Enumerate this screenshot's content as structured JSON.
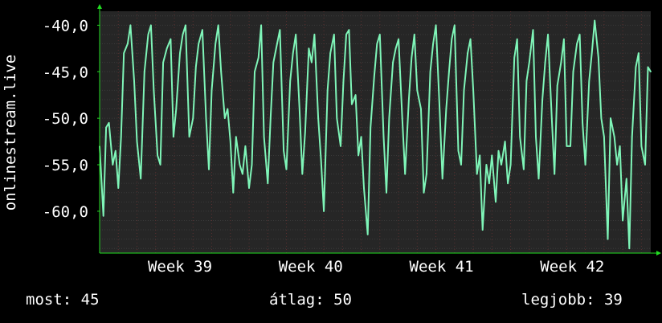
{
  "chart_data": {
    "type": "line",
    "title": "",
    "ylabel": "onlinestream.live",
    "xlabel": "",
    "ylim": [
      -64.5,
      -38.5
    ],
    "yticks": [
      {
        "value": -40,
        "label": "-40,0"
      },
      {
        "value": -45,
        "label": "-45,0"
      },
      {
        "value": -50,
        "label": "-50,0"
      },
      {
        "value": -55,
        "label": "-55,0"
      },
      {
        "value": -60,
        "label": "-60,0"
      }
    ],
    "xlim": [
      0,
      29.5
    ],
    "xticks": [
      {
        "value": 4.3,
        "label": "Week 39"
      },
      {
        "value": 11.3,
        "label": "Week 40"
      },
      {
        "value": 18.3,
        "label": "Week 41"
      },
      {
        "value": 25.3,
        "label": "Week 42"
      }
    ],
    "grid": true,
    "colors": {
      "line": "#7ff5b8",
      "background": "#262626",
      "grid": "#3a3a3a",
      "vgrid": "#5a3030",
      "axis": "#22dd22",
      "text": "#ffffff"
    },
    "series": [
      {
        "values": [
          [
            0.0,
            -53.0
          ],
          [
            0.2,
            -60.5
          ],
          [
            0.35,
            -51.0
          ],
          [
            0.5,
            -50.5
          ],
          [
            0.7,
            -55.0
          ],
          [
            0.85,
            -53.5
          ],
          [
            1.0,
            -57.5
          ],
          [
            1.15,
            -52.0
          ],
          [
            1.3,
            -43.0
          ],
          [
            1.5,
            -42.0
          ],
          [
            1.65,
            -40.0
          ],
          [
            1.85,
            -46.0
          ],
          [
            2.0,
            -52.5
          ],
          [
            2.2,
            -56.5
          ],
          [
            2.4,
            -45.0
          ],
          [
            2.6,
            -41.0
          ],
          [
            2.75,
            -40.0
          ],
          [
            2.9,
            -47.0
          ],
          [
            3.1,
            -54.0
          ],
          [
            3.25,
            -55.0
          ],
          [
            3.4,
            -44.0
          ],
          [
            3.6,
            -42.5
          ],
          [
            3.8,
            -41.5
          ],
          [
            3.95,
            -52.0
          ],
          [
            4.1,
            -49.0
          ],
          [
            4.3,
            -43.0
          ],
          [
            4.45,
            -41.0
          ],
          [
            4.6,
            -40.0
          ],
          [
            4.8,
            -52.0
          ],
          [
            5.0,
            -50.0
          ],
          [
            5.15,
            -44.5
          ],
          [
            5.3,
            -42.0
          ],
          [
            5.5,
            -40.5
          ],
          [
            5.7,
            -50.0
          ],
          [
            5.85,
            -55.5
          ],
          [
            6.0,
            -47.0
          ],
          [
            6.2,
            -42.0
          ],
          [
            6.35,
            -40.0
          ],
          [
            6.5,
            -45.0
          ],
          [
            6.7,
            -50.0
          ],
          [
            6.85,
            -49.0
          ],
          [
            7.0,
            -52.5
          ],
          [
            7.15,
            -58.0
          ],
          [
            7.3,
            -52.0
          ],
          [
            7.5,
            -55.0
          ],
          [
            7.65,
            -56.0
          ],
          [
            7.8,
            -53.0
          ],
          [
            8.0,
            -57.5
          ],
          [
            8.15,
            -55.0
          ],
          [
            8.3,
            -45.0
          ],
          [
            8.5,
            -43.5
          ],
          [
            8.65,
            -40.0
          ],
          [
            8.8,
            -52.0
          ],
          [
            9.0,
            -57.0
          ],
          [
            9.15,
            -50.0
          ],
          [
            9.3,
            -44.0
          ],
          [
            9.5,
            -42.0
          ],
          [
            9.65,
            -40.5
          ],
          [
            9.85,
            -53.5
          ],
          [
            10.0,
            -55.5
          ],
          [
            10.2,
            -46.0
          ],
          [
            10.35,
            -43.0
          ],
          [
            10.5,
            -41.0
          ],
          [
            10.7,
            -49.0
          ],
          [
            10.85,
            -56.0
          ],
          [
            11.0,
            -51.5
          ],
          [
            11.2,
            -42.5
          ],
          [
            11.35,
            -44.0
          ],
          [
            11.5,
            -41.0
          ],
          [
            11.7,
            -50.0
          ],
          [
            11.85,
            -54.5
          ],
          [
            12.0,
            -60.0
          ],
          [
            12.2,
            -47.0
          ],
          [
            12.35,
            -43.0
          ],
          [
            12.55,
            -41.0
          ],
          [
            12.7,
            -50.0
          ],
          [
            12.9,
            -53.0
          ],
          [
            13.05,
            -46.0
          ],
          [
            13.2,
            -41.0
          ],
          [
            13.35,
            -40.5
          ],
          [
            13.5,
            -48.5
          ],
          [
            13.7,
            -47.5
          ],
          [
            13.85,
            -54.0
          ],
          [
            14.0,
            -52.0
          ],
          [
            14.15,
            -57.5
          ],
          [
            14.35,
            -62.5
          ],
          [
            14.5,
            -51.0
          ],
          [
            14.7,
            -45.5
          ],
          [
            14.85,
            -42.0
          ],
          [
            15.0,
            -41.0
          ],
          [
            15.2,
            -52.0
          ],
          [
            15.35,
            -58.0
          ],
          [
            15.5,
            -50.0
          ],
          [
            15.7,
            -44.0
          ],
          [
            15.85,
            -42.5
          ],
          [
            16.0,
            -41.5
          ],
          [
            16.2,
            -50.0
          ],
          [
            16.35,
            -56.0
          ],
          [
            16.55,
            -48.0
          ],
          [
            16.7,
            -43.5
          ],
          [
            16.85,
            -41.0
          ],
          [
            17.0,
            -47.0
          ],
          [
            17.2,
            -49.0
          ],
          [
            17.35,
            -58.0
          ],
          [
            17.5,
            -56.0
          ],
          [
            17.7,
            -45.0
          ],
          [
            17.85,
            -42.0
          ],
          [
            18.0,
            -40.0
          ],
          [
            18.2,
            -49.0
          ],
          [
            18.35,
            -56.5
          ],
          [
            18.55,
            -49.0
          ],
          [
            18.7,
            -45.0
          ],
          [
            18.85,
            -41.5
          ],
          [
            19.0,
            -40.0
          ],
          [
            19.2,
            -53.5
          ],
          [
            19.35,
            -55.0
          ],
          [
            19.5,
            -47.0
          ],
          [
            19.7,
            -43.0
          ],
          [
            19.85,
            -41.5
          ],
          [
            20.0,
            -47.0
          ],
          [
            20.2,
            -56.0
          ],
          [
            20.35,
            -54.0
          ],
          [
            20.5,
            -62.0
          ],
          [
            20.7,
            -55.0
          ],
          [
            20.85,
            -57.0
          ],
          [
            21.0,
            -54.0
          ],
          [
            21.2,
            -59.0
          ],
          [
            21.35,
            -53.5
          ],
          [
            21.5,
            -55.0
          ],
          [
            21.7,
            -52.5
          ],
          [
            21.85,
            -57.0
          ],
          [
            22.0,
            -55.0
          ],
          [
            22.2,
            -43.5
          ],
          [
            22.35,
            -41.5
          ],
          [
            22.5,
            -52.0
          ],
          [
            22.7,
            -55.5
          ],
          [
            22.85,
            -46.0
          ],
          [
            23.0,
            -44.0
          ],
          [
            23.2,
            -40.5
          ],
          [
            23.35,
            -52.0
          ],
          [
            23.5,
            -56.5
          ],
          [
            23.7,
            -48.0
          ],
          [
            23.85,
            -44.0
          ],
          [
            24.0,
            -41.0
          ],
          [
            24.2,
            -50.0
          ],
          [
            24.35,
            -56.0
          ],
          [
            24.5,
            -46.5
          ],
          [
            24.7,
            -44.0
          ],
          [
            24.85,
            -41.5
          ],
          [
            25.0,
            -53.0
          ],
          [
            25.2,
            -53.0
          ],
          [
            25.35,
            -45.0
          ],
          [
            25.55,
            -42.0
          ],
          [
            25.7,
            -41.0
          ],
          [
            25.85,
            -50.5
          ],
          [
            26.0,
            -55.0
          ],
          [
            26.2,
            -46.0
          ],
          [
            26.35,
            -43.0
          ],
          [
            26.5,
            -39.5
          ],
          [
            26.7,
            -43.5
          ],
          [
            26.85,
            -50.0
          ],
          [
            27.0,
            -52.0
          ],
          [
            27.2,
            -63.0
          ],
          [
            27.35,
            -50.0
          ],
          [
            27.55,
            -52.0
          ],
          [
            27.7,
            -55.0
          ],
          [
            27.85,
            -53.0
          ],
          [
            28.0,
            -61.0
          ],
          [
            28.2,
            -56.5
          ],
          [
            28.35,
            -64.0
          ],
          [
            28.5,
            -52.0
          ],
          [
            28.7,
            -44.5
          ],
          [
            28.85,
            -43.0
          ],
          [
            29.0,
            -53.0
          ],
          [
            29.2,
            -55.0
          ],
          [
            29.35,
            -44.5
          ],
          [
            29.5,
            -45.0
          ]
        ]
      }
    ]
  },
  "stats": {
    "now_label": "most:",
    "now_value": "45",
    "avg_label": "átlag:",
    "avg_value": "50",
    "best_label": "legjobb:",
    "best_value": "39"
  }
}
